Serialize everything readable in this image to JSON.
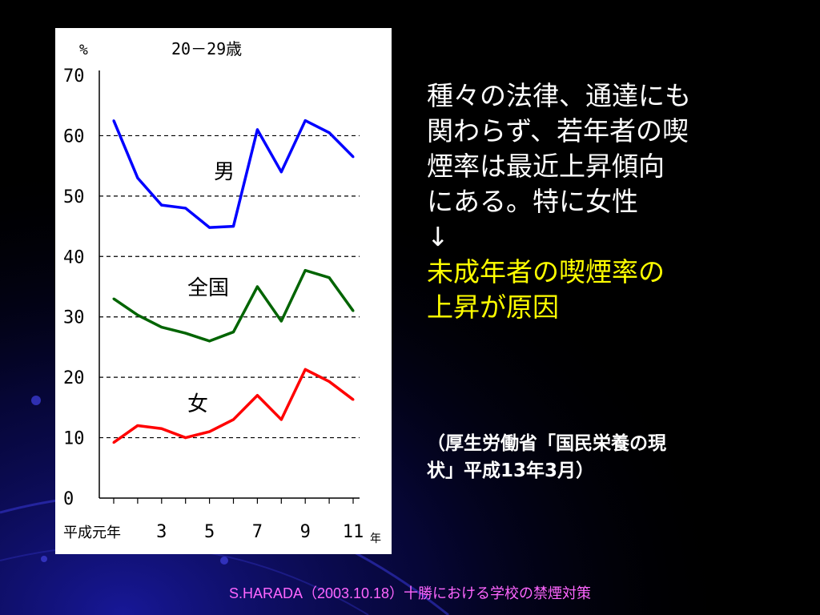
{
  "theme": {
    "background": "#000000",
    "text_color": "#ffffff",
    "highlight_color": "#ffff00",
    "footer_color": "#ff66ff",
    "decoration_color": "#1a1aa8"
  },
  "chart_data": {
    "type": "line",
    "unit_label": "%",
    "title": "20－29歳",
    "ylim": [
      0,
      70
    ],
    "y_ticks": [
      "0",
      "10",
      "20",
      "30",
      "40",
      "50",
      "60",
      "70"
    ],
    "x": [
      1,
      2,
      3,
      4,
      5,
      6,
      7,
      8,
      9,
      10,
      11
    ],
    "x_tick_labels": [
      "平成元年",
      "3",
      "5",
      "7",
      "9",
      "11"
    ],
    "x_unit": "年",
    "grid": "horizontal-dashed",
    "series": [
      {
        "name": "男",
        "color": "#0000ff",
        "values": [
          62.5,
          53,
          48.5,
          48,
          44.8,
          45,
          61,
          54,
          62.5,
          60.5,
          56.5
        ]
      },
      {
        "name": "全国",
        "color": "#006400",
        "values": [
          33,
          30.3,
          28.3,
          27.3,
          26,
          27.5,
          35,
          29.3,
          37.7,
          36.5,
          31
        ]
      },
      {
        "name": "女",
        "color": "#ff0000",
        "values": [
          9.2,
          12,
          11.5,
          10,
          11,
          13,
          17,
          13,
          21.3,
          19.3,
          16.3
        ]
      }
    ]
  },
  "body": {
    "lines": [
      "種々の法律、通達にも",
      "関わらず、若年者の喫",
      "煙率は最近上昇傾向",
      "にある。特に女性",
      "↓"
    ],
    "highlight_lines": [
      "未成年者の喫煙率の",
      "上昇が原因"
    ]
  },
  "source": {
    "lines": [
      "（厚生労働省「国民栄養の現",
      "状」平成13年3月）"
    ]
  },
  "footer": {
    "text": "S.HARADA（2003.10.18）十勝における学校の禁煙対策"
  }
}
